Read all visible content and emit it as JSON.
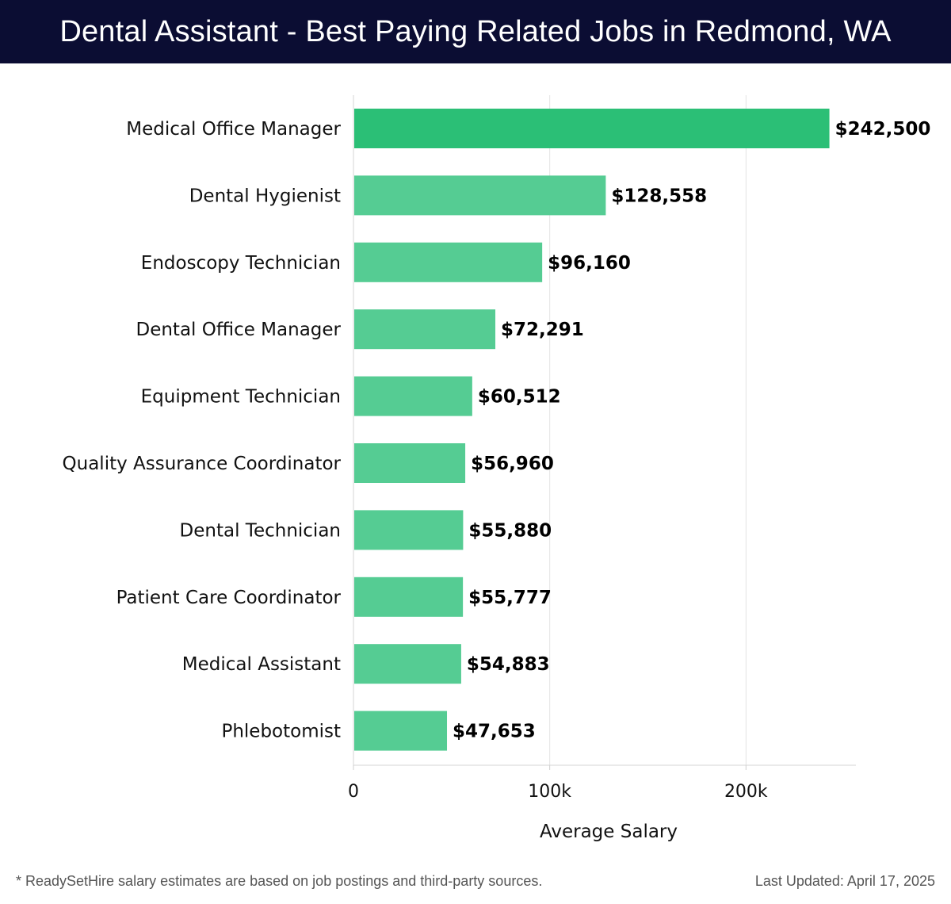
{
  "header": {
    "title": "Dental Assistant - Best Paying Related Jobs in Redmond, WA"
  },
  "chart_data": {
    "type": "bar",
    "orientation": "horizontal",
    "categories": [
      "Medical Office Manager",
      "Dental Hygienist",
      "Endoscopy Technician",
      "Dental Office Manager",
      "Equipment Technician",
      "Quality Assurance Coordinator",
      "Dental Technician",
      "Patient Care Coordinator",
      "Medical Assistant",
      "Phlebotomist"
    ],
    "values": [
      242500,
      128558,
      96160,
      72291,
      60512,
      56960,
      55880,
      55777,
      54883,
      47653
    ],
    "value_labels": [
      "$242,500",
      "$128,558",
      "$96,160",
      "$72,291",
      "$60,512",
      "$56,960",
      "$55,880",
      "$55,777",
      "$54,883",
      "$47,653"
    ],
    "xlabel": "Average Salary",
    "xlim": [
      0,
      256000
    ],
    "xticks": [
      0,
      100000,
      200000
    ],
    "xtick_labels": [
      "0",
      "100k",
      "200k"
    ],
    "grid": "vertical",
    "colors": {
      "top_bar": "#2bbf76",
      "bar": "#55cc93"
    }
  },
  "footer": {
    "note": "* ReadySetHire salary estimates are based on job postings and third-party sources.",
    "updated": "Last Updated: April 17, 2025"
  }
}
